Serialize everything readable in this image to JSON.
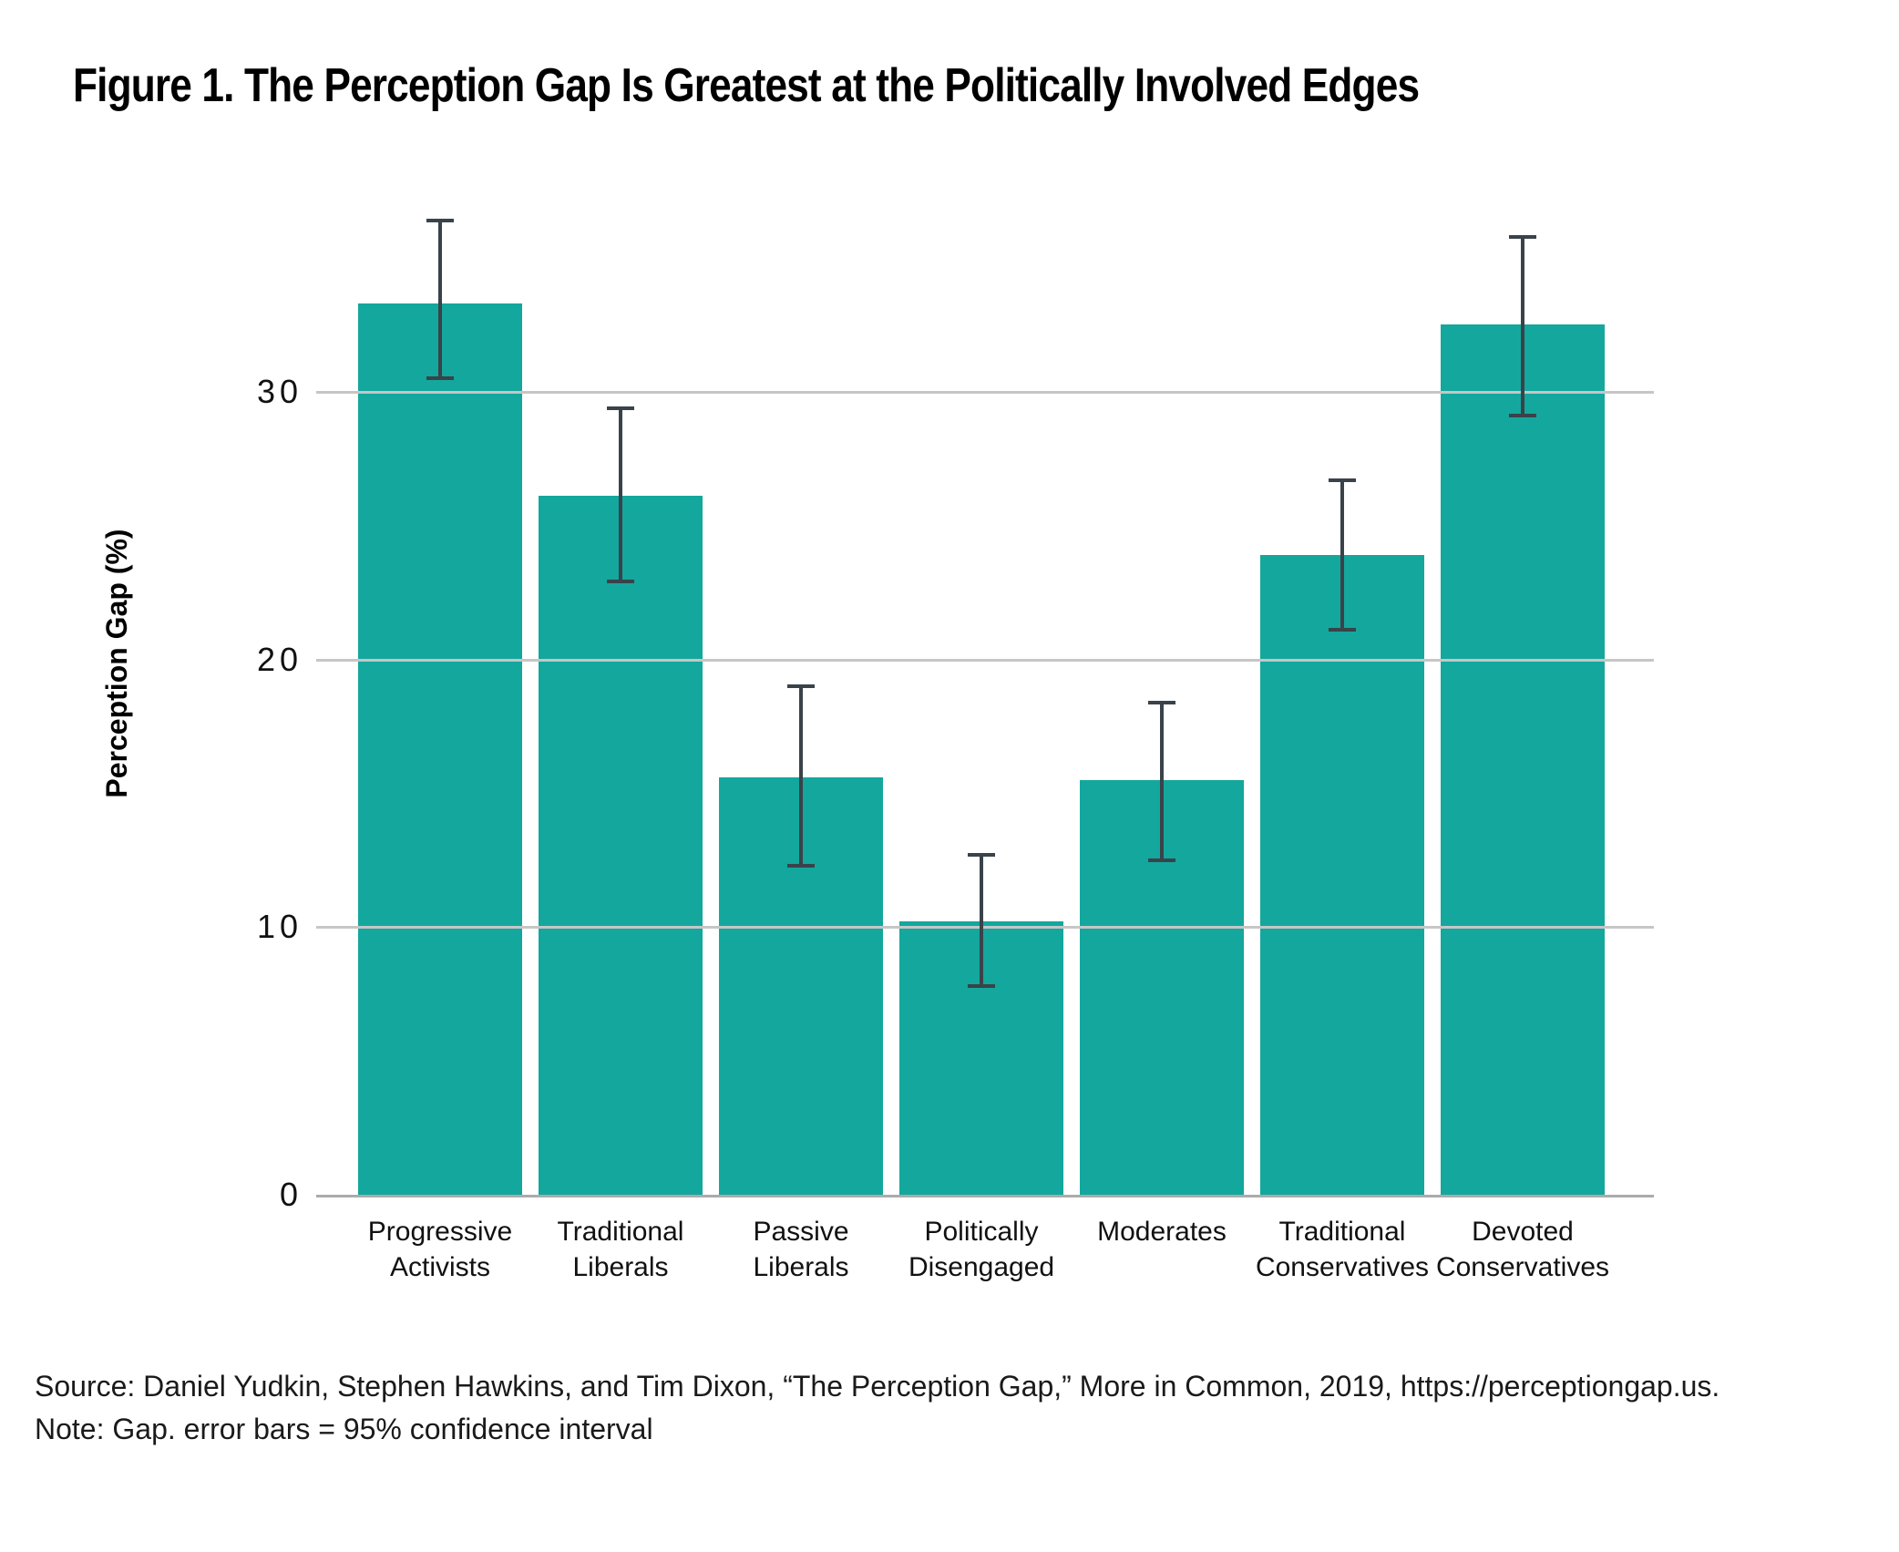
{
  "chart_data": {
    "type": "bar",
    "title": "Figure 1. The Perception Gap Is Greatest at the Politically Involved Edges",
    "xlabel": "",
    "ylabel": "Perception Gap (%)",
    "categories": [
      "Progressive Activists",
      "Traditional Liberals",
      "Passive Liberals",
      "Politically Disengaged",
      "Moderates",
      "Traditional Conservatives",
      "Devoted Conservatives"
    ],
    "values": [
      33.3,
      26.1,
      15.6,
      10.2,
      15.5,
      23.9,
      32.5
    ],
    "error_low": [
      30.5,
      22.9,
      12.3,
      7.8,
      12.5,
      21.1,
      29.1
    ],
    "error_high": [
      36.4,
      29.4,
      19.0,
      12.7,
      18.4,
      26.7,
      35.8
    ],
    "yticks": [
      0,
      10,
      20,
      30
    ],
    "ylim": [
      0,
      37
    ],
    "grid": true,
    "legend": "none"
  },
  "colors": {
    "bar": "#14a79d",
    "error": "#3a424a",
    "grid": "#c6c6c6",
    "axis": "#ababab"
  },
  "footer": {
    "source": "Source: Daniel Yudkin, Stephen Hawkins, and Tim Dixon, “The Perception Gap,” More in Common, 2019, https://perceptiongap.us.",
    "note": "Note: Gap. error bars = 95% confidence interval"
  }
}
